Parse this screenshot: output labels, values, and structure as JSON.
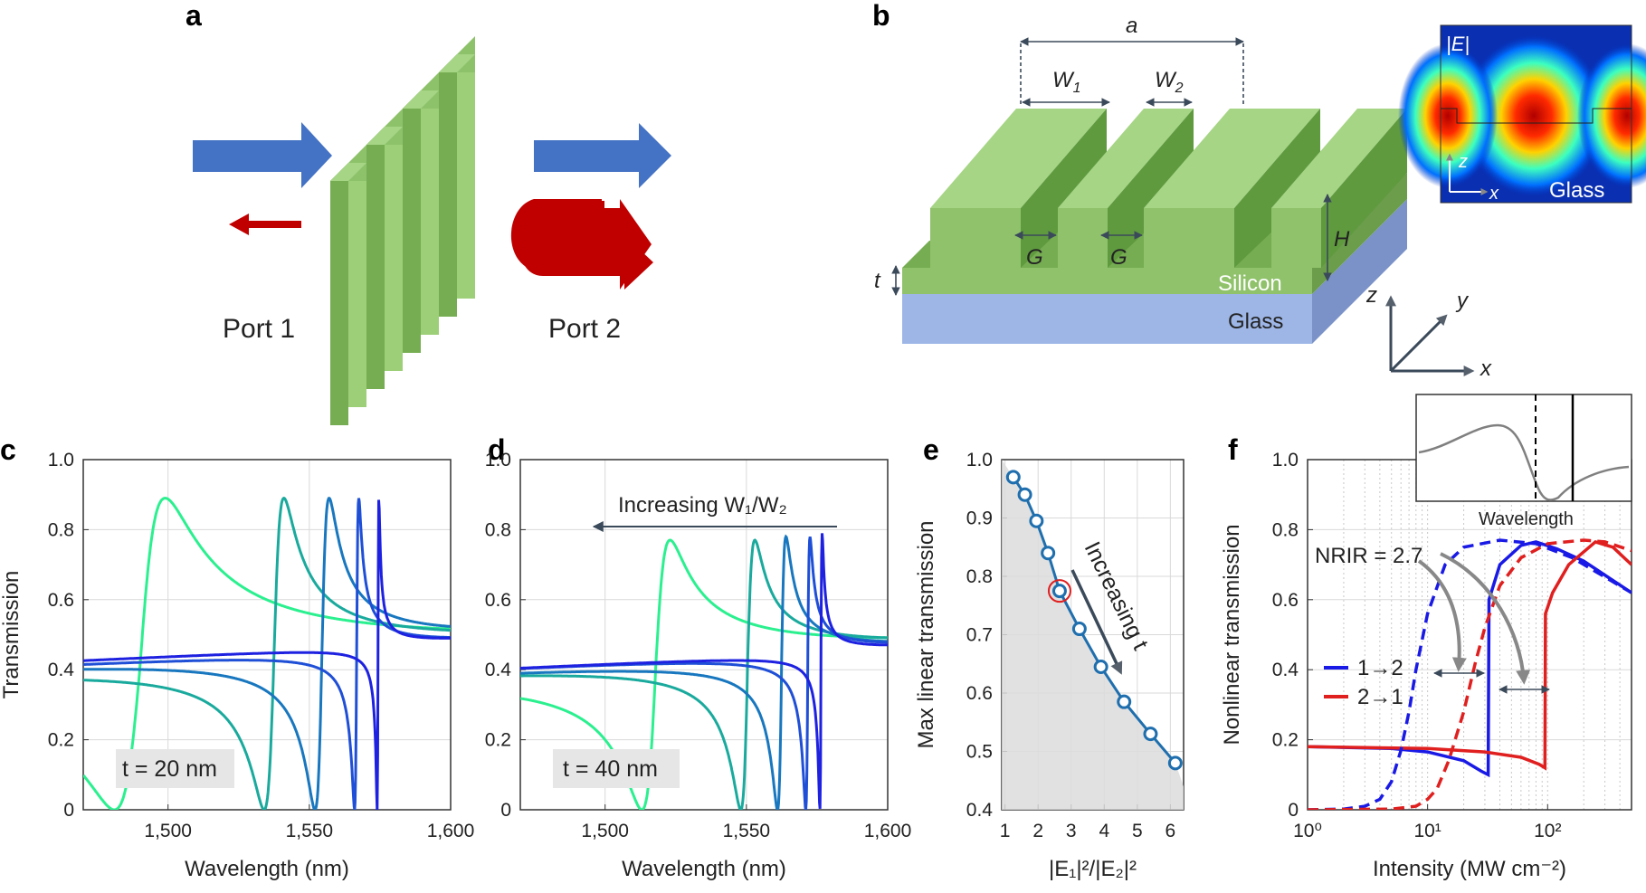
{
  "figure": {
    "panels": {
      "a": {
        "label": "a",
        "port1": "Port 1",
        "port2": "Port 2"
      },
      "b": {
        "label": "b",
        "a": "a",
        "W1": "W",
        "W1_sub": "1",
        "W2": "W",
        "W2_sub": "2",
        "G1": "G",
        "G2": "G",
        "H": "H",
        "t": "t",
        "silicon": "Silicon",
        "glass": "Glass",
        "axes": {
          "x": "x",
          "y": "y",
          "z": "z"
        },
        "inset": {
          "field": "|E|",
          "z": "z",
          "x": "x",
          "glass": "Glass"
        }
      },
      "c": {
        "label": "c",
        "note": "t = 20 nm"
      },
      "d": {
        "label": "d",
        "note": "t = 40 nm",
        "arrow_text": "Increasing W₁/W₂"
      },
      "e": {
        "label": "e",
        "arrow_text": "Increasing t"
      },
      "f": {
        "label": "f",
        "nrir": "NRIR = 2.7",
        "inset_xlabel": "Wavelength"
      }
    },
    "colors": {
      "green": "#8fc26a",
      "glass": "#9db6e6",
      "blue_arrow": "#4472c4",
      "red_arrow": "#c00000"
    }
  },
  "chart_data": [
    {
      "panel": "c",
      "type": "line",
      "title": "",
      "xlabel": "Wavelength (nm)",
      "ylabel": "Transmission",
      "xlim": [
        1470,
        1600
      ],
      "ylim": [
        0,
        1.0
      ],
      "xticks": [
        "1,500",
        "1,550",
        "1,600"
      ],
      "xtick_values": [
        1500,
        1550,
        1600
      ],
      "yticks": [
        "0",
        "0.2",
        "0.4",
        "0.6",
        "0.8",
        "1.0"
      ],
      "ytick_values": [
        0,
        0.2,
        0.4,
        0.6,
        0.8,
        1.0
      ],
      "grid": true,
      "series": [
        {
          "color": "#2bf08f",
          "peak_x": 1481,
          "peak_y": 0.89,
          "dip_x": 1499,
          "base": 0.4,
          "gamma": 8.0
        },
        {
          "color": "#1aaa9d",
          "peak_x": 1534,
          "peak_y": 0.89,
          "dip_x": 1541,
          "base": 0.44,
          "gamma": 3.0
        },
        {
          "color": "#1877bf",
          "peak_x": 1552,
          "peak_y": 0.89,
          "dip_x": 1557,
          "base": 0.46,
          "gamma": 1.6
        },
        {
          "color": "#1f4fd6",
          "peak_x": 1566,
          "peak_y": 0.89,
          "dip_x": 1567.5,
          "base": 0.46,
          "gamma": 0.6
        },
        {
          "color": "#1e22e0",
          "peak_x": 1574,
          "peak_y": 0.89,
          "dip_x": 1574.6,
          "base": 0.47,
          "gamma": 0.25
        }
      ]
    },
    {
      "panel": "d",
      "type": "line",
      "title": "",
      "xlabel": "Wavelength (nm)",
      "ylabel": "",
      "xlim": [
        1470,
        1600
      ],
      "ylim": [
        0,
        1.0
      ],
      "xticks": [
        "1,500",
        "1,550",
        "1,600"
      ],
      "xtick_values": [
        1500,
        1550,
        1600
      ],
      "yticks": [
        "0",
        "0.2",
        "0.4",
        "0.6",
        "0.8",
        "1.0"
      ],
      "ytick_values": [
        0,
        0.2,
        0.4,
        0.6,
        0.8,
        1.0
      ],
      "grid": true,
      "series": [
        {
          "color": "#2bf08f",
          "peak_x": 1513,
          "peak_y": 0.77,
          "dip_x": 1523,
          "base": 0.42,
          "gamma": 5.0
        },
        {
          "color": "#1aaa9d",
          "peak_x": 1548,
          "peak_y": 0.77,
          "dip_x": 1553,
          "base": 0.44,
          "gamma": 2.0
        },
        {
          "color": "#1877bf",
          "peak_x": 1561,
          "peak_y": 0.78,
          "dip_x": 1564,
          "base": 0.44,
          "gamma": 1.0
        },
        {
          "color": "#1f4fd6",
          "peak_x": 1571,
          "peak_y": 0.78,
          "dip_x": 1572.5,
          "base": 0.45,
          "gamma": 0.5
        },
        {
          "color": "#1e22e0",
          "peak_x": 1576,
          "peak_y": 0.79,
          "dip_x": 1576.8,
          "base": 0.45,
          "gamma": 0.25
        }
      ]
    },
    {
      "panel": "e",
      "type": "line",
      "title": "",
      "xlabel": "|E₁|²/|E₂|²",
      "ylabel": "Max linear transmission",
      "xlim": [
        0.9,
        6.4
      ],
      "ylim": [
        0.4,
        1.0
      ],
      "xticks": [
        "1",
        "2",
        "3",
        "4",
        "5",
        "6"
      ],
      "xtick_values": [
        1,
        2,
        3,
        4,
        5,
        6
      ],
      "yticks": [
        "0.4",
        "0.5",
        "0.6",
        "0.7",
        "0.8",
        "0.9",
        "1.0"
      ],
      "ytick_values": [
        0.4,
        0.5,
        0.6,
        0.7,
        0.8,
        0.9,
        1.0
      ],
      "grid": true,
      "color": "#1f6fae",
      "x": [
        1.25,
        1.6,
        1.95,
        2.3,
        2.65,
        3.25,
        3.9,
        4.6,
        5.4,
        6.15
      ],
      "y": [
        0.97,
        0.94,
        0.895,
        0.84,
        0.775,
        0.71,
        0.645,
        0.585,
        0.53,
        0.48
      ],
      "highlight_index": 4
    },
    {
      "panel": "f",
      "type": "line",
      "title": "",
      "xlabel": "Intensity (MW cm⁻²)",
      "ylabel": "Nonlinear transmission",
      "xscale": "log",
      "xlim": [
        1,
        500
      ],
      "ylim": [
        0,
        1.0
      ],
      "xticks": [
        "10⁰",
        "10¹",
        "10²"
      ],
      "xtick_values": [
        1,
        10,
        100
      ],
      "yticks": [
        "0",
        "0.2",
        "0.4",
        "0.6",
        "0.8",
        "1.0"
      ],
      "ytick_values": [
        0,
        0.2,
        0.4,
        0.6,
        0.8,
        1.0
      ],
      "grid": true,
      "legend": {
        "position": "left",
        "entries": [
          {
            "name": "1→2",
            "color": "#1a1ae6"
          },
          {
            "name": "2→1",
            "color": "#e01f1f"
          }
        ]
      },
      "series": [
        {
          "name": "1→2",
          "style": "solid",
          "color": "#1a1ae6",
          "x": [
            1,
            5,
            10,
            20,
            28,
            32,
            32.5,
            40,
            60,
            80,
            120,
            200,
            500
          ],
          "y": [
            0.18,
            0.175,
            0.165,
            0.14,
            0.11,
            0.1,
            0.6,
            0.7,
            0.755,
            0.765,
            0.745,
            0.71,
            0.62
          ]
        },
        {
          "name": "2→1",
          "style": "solid",
          "color": "#e01f1f",
          "x": [
            1,
            10,
            30,
            60,
            85,
            95,
            96,
            110,
            150,
            250,
            350,
            500
          ],
          "y": [
            0.18,
            0.175,
            0.165,
            0.15,
            0.13,
            0.12,
            0.56,
            0.62,
            0.7,
            0.765,
            0.75,
            0.7
          ]
        },
        {
          "name": "1→2 dashed",
          "style": "dashed",
          "color": "#1a1ae6",
          "x": [
            1,
            2,
            3,
            4,
            5,
            6,
            7,
            8,
            10,
            14,
            20,
            40,
            80,
            160,
            500
          ],
          "y": [
            0.0,
            0.002,
            0.01,
            0.03,
            0.08,
            0.17,
            0.28,
            0.4,
            0.56,
            0.7,
            0.75,
            0.77,
            0.76,
            0.72,
            0.62
          ]
        },
        {
          "name": "2→1 dashed",
          "style": "dashed",
          "color": "#e01f1f",
          "x": [
            1,
            5,
            8,
            10,
            12,
            15,
            20,
            25,
            30,
            40,
            60,
            100,
            200,
            300,
            500
          ],
          "y": [
            0.0,
            0.002,
            0.01,
            0.03,
            0.06,
            0.14,
            0.28,
            0.42,
            0.52,
            0.64,
            0.72,
            0.76,
            0.77,
            0.765,
            0.74
          ]
        }
      ]
    }
  ]
}
